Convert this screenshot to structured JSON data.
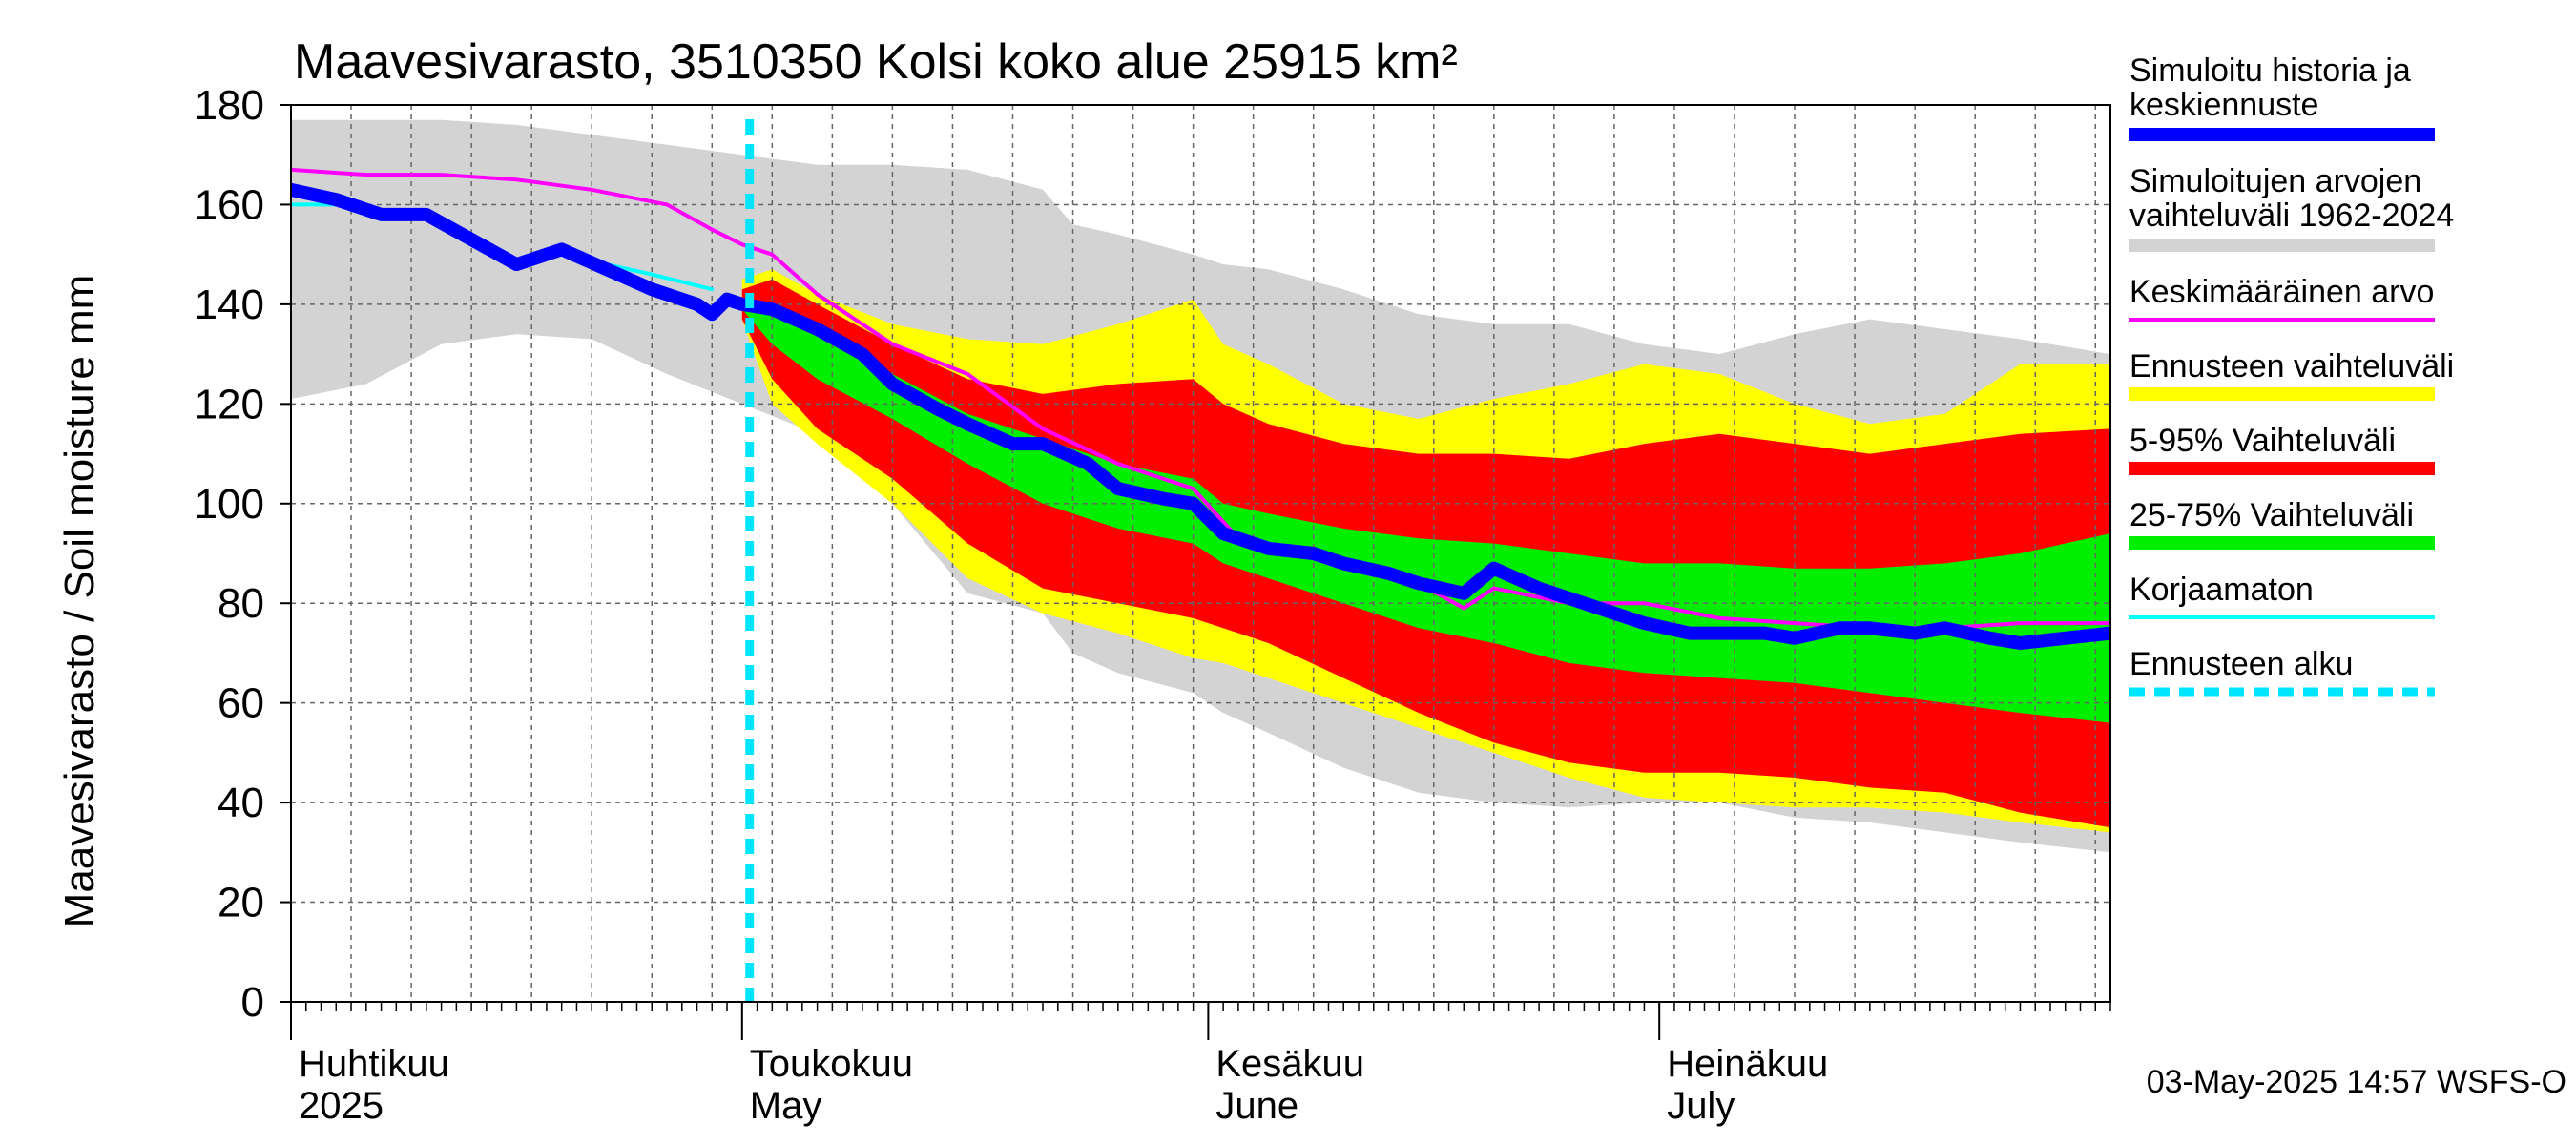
{
  "chart_data": {
    "type": "area",
    "title": "Maavesivarasto, 3510350 Kolsi koko alue 25915 km²",
    "ylabel": "Maavesivarasto / Soil moisture   mm",
    "ylim": [
      0,
      180
    ],
    "yticks": [
      0,
      20,
      40,
      60,
      80,
      100,
      120,
      140,
      160,
      180
    ],
    "xlim_days": [
      0,
      121
    ],
    "month_labels": [
      {
        "day": 0,
        "fi": "Huhtikuu",
        "en": "2025"
      },
      {
        "day": 30,
        "fi": "Toukokuu",
        "en": "May"
      },
      {
        "day": 61,
        "fi": "Kesäkuu",
        "en": "June"
      },
      {
        "day": 91,
        "fi": "Heinäkuu",
        "en": "July"
      }
    ],
    "forecast_start_day": 30.5,
    "timestamp": "03-May-2025 14:57 WSFS-O",
    "series": [
      {
        "name": "hist_range",
        "label": "Simuloitujen arvojen vaihteluväli 1962-2024",
        "color": "#d3d3d3",
        "x": [
          0,
          5,
          10,
          15,
          20,
          25,
          30,
          35,
          40,
          45,
          50,
          52,
          55,
          60,
          62,
          65,
          70,
          75,
          80,
          85,
          90,
          95,
          100,
          105,
          110,
          115,
          121
        ],
        "upper": [
          177,
          177,
          177,
          176,
          174,
          172,
          170,
          168,
          168,
          167,
          163,
          156,
          154,
          150,
          148,
          147,
          143,
          138,
          136,
          136,
          132,
          130,
          134,
          137,
          135,
          133,
          130
        ],
        "lower": [
          121,
          124,
          132,
          134,
          133,
          126,
          120,
          114,
          100,
          82,
          78,
          70,
          66,
          62,
          58,
          54,
          47,
          42,
          40,
          39,
          40,
          40,
          37,
          36,
          34,
          32,
          30
        ]
      },
      {
        "name": "ens_range",
        "label": "Ennusteen vaihteluväli",
        "color": "#ffff00",
        "x": [
          30,
          32,
          35,
          40,
          45,
          50,
          55,
          60,
          62,
          65,
          70,
          75,
          80,
          85,
          90,
          95,
          100,
          105,
          110,
          115,
          121
        ],
        "upper": [
          145,
          147,
          142,
          136,
          133,
          132,
          136,
          141,
          132,
          128,
          120,
          117,
          121,
          124,
          128,
          126,
          120,
          116,
          118,
          128,
          128
        ],
        "lower": [
          137,
          120,
          112,
          100,
          85,
          78,
          74,
          69,
          68,
          65,
          60,
          55,
          50,
          45,
          41,
          40,
          39,
          39,
          38,
          36,
          34
        ]
      },
      {
        "name": "p5_95",
        "label": "5-95% Vaihteluväli",
        "color": "#ff0000",
        "x": [
          30,
          32,
          35,
          40,
          45,
          50,
          55,
          60,
          62,
          65,
          70,
          75,
          80,
          85,
          90,
          95,
          100,
          105,
          110,
          115,
          121
        ],
        "upper": [
          143,
          145,
          140,
          132,
          125,
          122,
          124,
          125,
          120,
          116,
          112,
          110,
          110,
          109,
          112,
          114,
          112,
          110,
          112,
          114,
          115
        ],
        "lower": [
          137,
          125,
          115,
          105,
          92,
          83,
          80,
          77,
          75,
          72,
          65,
          58,
          52,
          48,
          46,
          46,
          45,
          43,
          42,
          38,
          35
        ]
      },
      {
        "name": "p25_75",
        "label": "25-75% Vaihteluväli",
        "color": "#00ee00",
        "x": [
          30,
          32,
          35,
          40,
          45,
          50,
          55,
          60,
          62,
          65,
          70,
          75,
          80,
          85,
          90,
          95,
          100,
          105,
          110,
          115,
          121
        ],
        "upper": [
          141,
          140,
          135,
          126,
          118,
          113,
          108,
          105,
          100,
          98,
          95,
          93,
          92,
          90,
          88,
          88,
          87,
          87,
          88,
          90,
          94
        ],
        "lower": [
          139,
          132,
          125,
          117,
          108,
          100,
          95,
          92,
          88,
          85,
          80,
          75,
          72,
          68,
          66,
          65,
          64,
          62,
          60,
          58,
          56
        ]
      },
      {
        "name": "mean",
        "label": "Keskimääräinen arvo",
        "color": "#ff00ff",
        "x": [
          0,
          5,
          10,
          15,
          20,
          25,
          28,
          30,
          32,
          35,
          40,
          45,
          50,
          55,
          60,
          63,
          65,
          70,
          75,
          78,
          80,
          85,
          90,
          95,
          100,
          105,
          110,
          115,
          121
        ],
        "y": [
          167,
          166,
          166,
          165,
          163,
          160,
          155,
          152,
          150,
          142,
          132,
          126,
          115,
          108,
          103,
          93,
          92,
          87,
          84,
          79,
          83,
          80,
          80,
          77,
          76,
          75,
          75,
          76,
          76
        ]
      },
      {
        "name": "corrected",
        "label": "Korjaamaton",
        "color": "#00ffff",
        "x": [
          0,
          3,
          6,
          9,
          12,
          15,
          18,
          21,
          24,
          28
        ],
        "y": [
          160,
          160,
          158,
          159,
          154,
          149,
          150,
          148,
          146,
          143
        ]
      },
      {
        "name": "simulated",
        "label": "Simuloitu historia ja keskiennuste",
        "color": "#0000ff",
        "x": [
          0,
          3,
          6,
          9,
          12,
          15,
          18,
          21,
          24,
          27,
          28,
          29,
          30,
          32,
          35,
          38,
          40,
          43,
          45,
          48,
          50,
          53,
          55,
          58,
          60,
          62,
          65,
          68,
          70,
          73,
          75,
          78,
          80,
          83,
          85,
          88,
          90,
          93,
          95,
          98,
          100,
          103,
          105,
          108,
          110,
          113,
          115,
          118,
          121
        ],
        "y": [
          163,
          161,
          158,
          158,
          153,
          148,
          151,
          147,
          143,
          140,
          138,
          141,
          140,
          139,
          135,
          130,
          124,
          119,
          116,
          112,
          112,
          108,
          103,
          101,
          100,
          94,
          91,
          90,
          88,
          86,
          84,
          82,
          87,
          83,
          81,
          78,
          76,
          74,
          74,
          74,
          73,
          75,
          75,
          74,
          75,
          73,
          72,
          73,
          74
        ]
      }
    ]
  },
  "legend": {
    "items": [
      {
        "label": "Simuloitu historia ja",
        "label2": "keskiennuste",
        "color": "#0000ff",
        "style": "thick"
      },
      {
        "label": "Simuloitujen arvojen",
        "label2": "vaihteluväli 1962-2024",
        "color": "#d3d3d3",
        "style": "thick"
      },
      {
        "label": "Keskimääräinen arvo",
        "label2": "",
        "color": "#ff00ff",
        "style": "thin"
      },
      {
        "label": "Ennusteen vaihteluväli",
        "label2": "",
        "color": "#ffff00",
        "style": "thick"
      },
      {
        "label": "5-95% Vaihteluväli",
        "label2": "",
        "color": "#ff0000",
        "style": "thick"
      },
      {
        "label": "25-75% Vaihteluväli",
        "label2": "",
        "color": "#00ee00",
        "style": "thick"
      },
      {
        "label": "Korjaamaton",
        "label2": "",
        "color": "#00ffff",
        "style": "thin"
      },
      {
        "label": "Ennusteen alku",
        "label2": "",
        "color": "#00e5ff",
        "style": "dashed"
      }
    ]
  }
}
